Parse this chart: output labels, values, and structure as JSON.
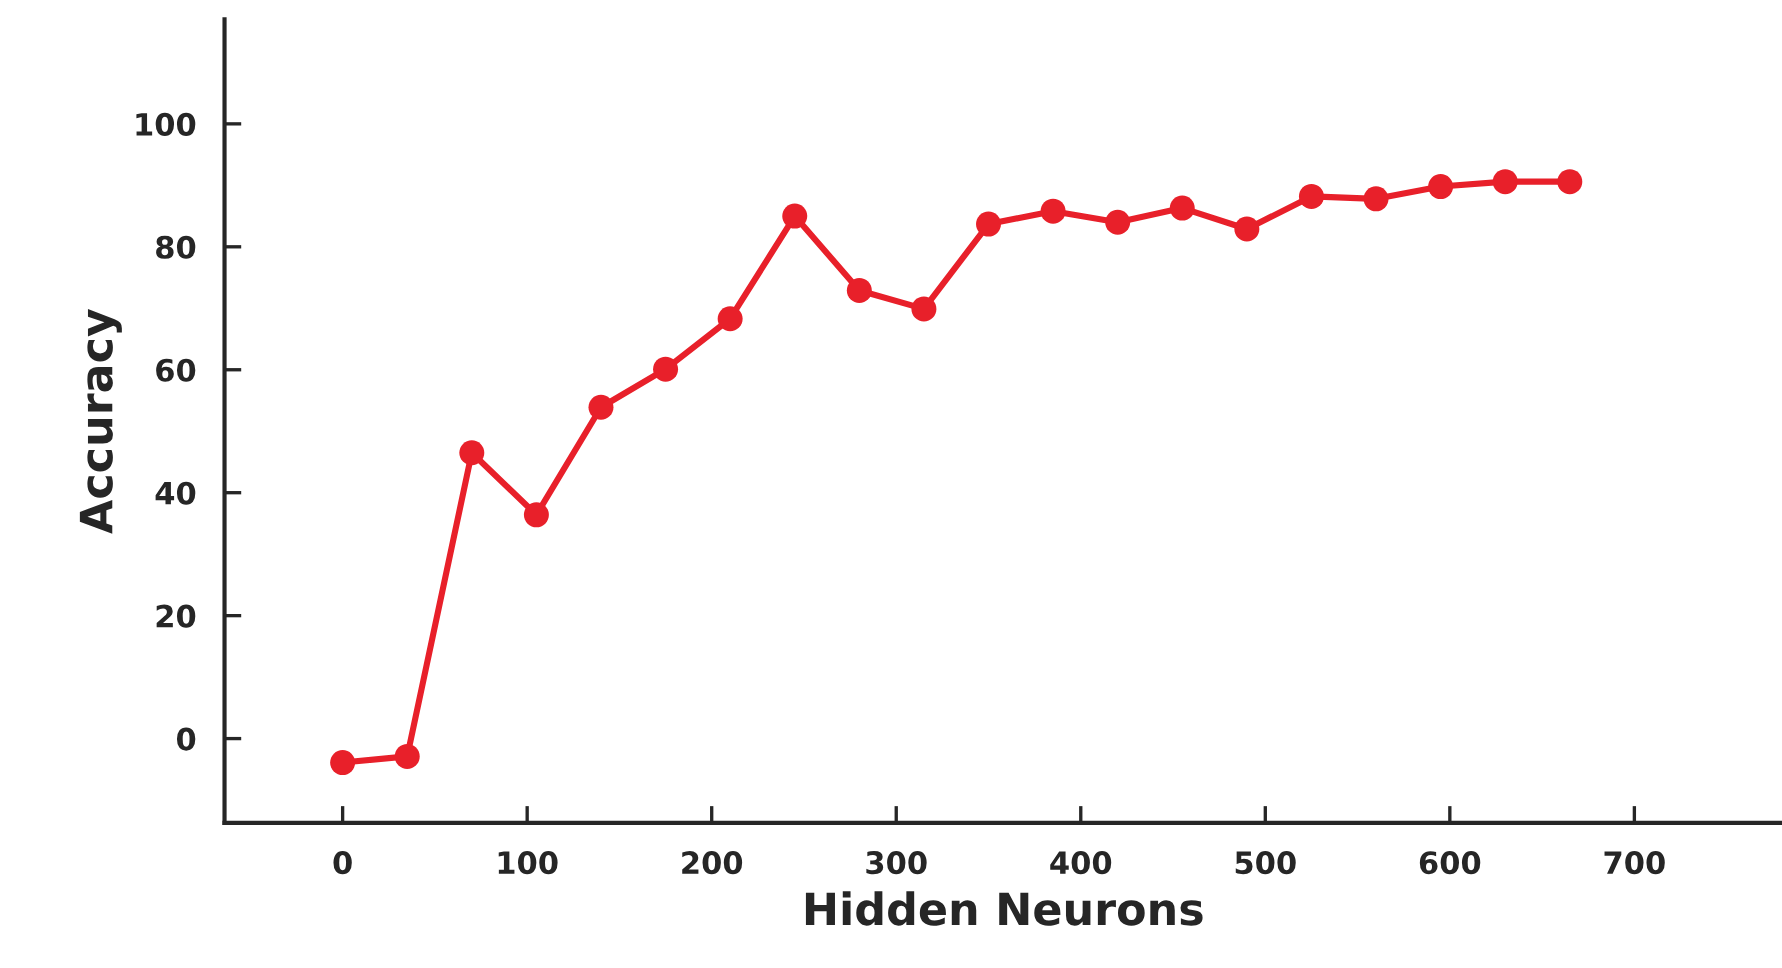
{
  "chart_data": {
    "type": "line",
    "xlabel": "Hidden Neurons",
    "ylabel": "Accuracy",
    "x": [
      0,
      35,
      70,
      105,
      140,
      175,
      210,
      245,
      280,
      315,
      350,
      385,
      420,
      455,
      490,
      525,
      560,
      595,
      630,
      665
    ],
    "series": [
      {
        "color": "#e8202a",
        "values": [
          -3.9,
          -2.9,
          46.5,
          36.4,
          53.9,
          60.1,
          68.3,
          85.0,
          72.9,
          69.9,
          83.7,
          85.8,
          84.0,
          86.3,
          82.9,
          88.2,
          87.8,
          89.8,
          90.6,
          90.6
        ]
      }
    ],
    "xlim": [
      -64,
      780
    ],
    "ylim": [
      -13.7,
      117
    ],
    "xticks": [
      0,
      100,
      200,
      300,
      400,
      500,
      600,
      700
    ],
    "yticks": [
      0,
      20,
      40,
      60,
      80,
      100
    ],
    "marker": "circle",
    "line_style": "solid",
    "grid": false
  }
}
